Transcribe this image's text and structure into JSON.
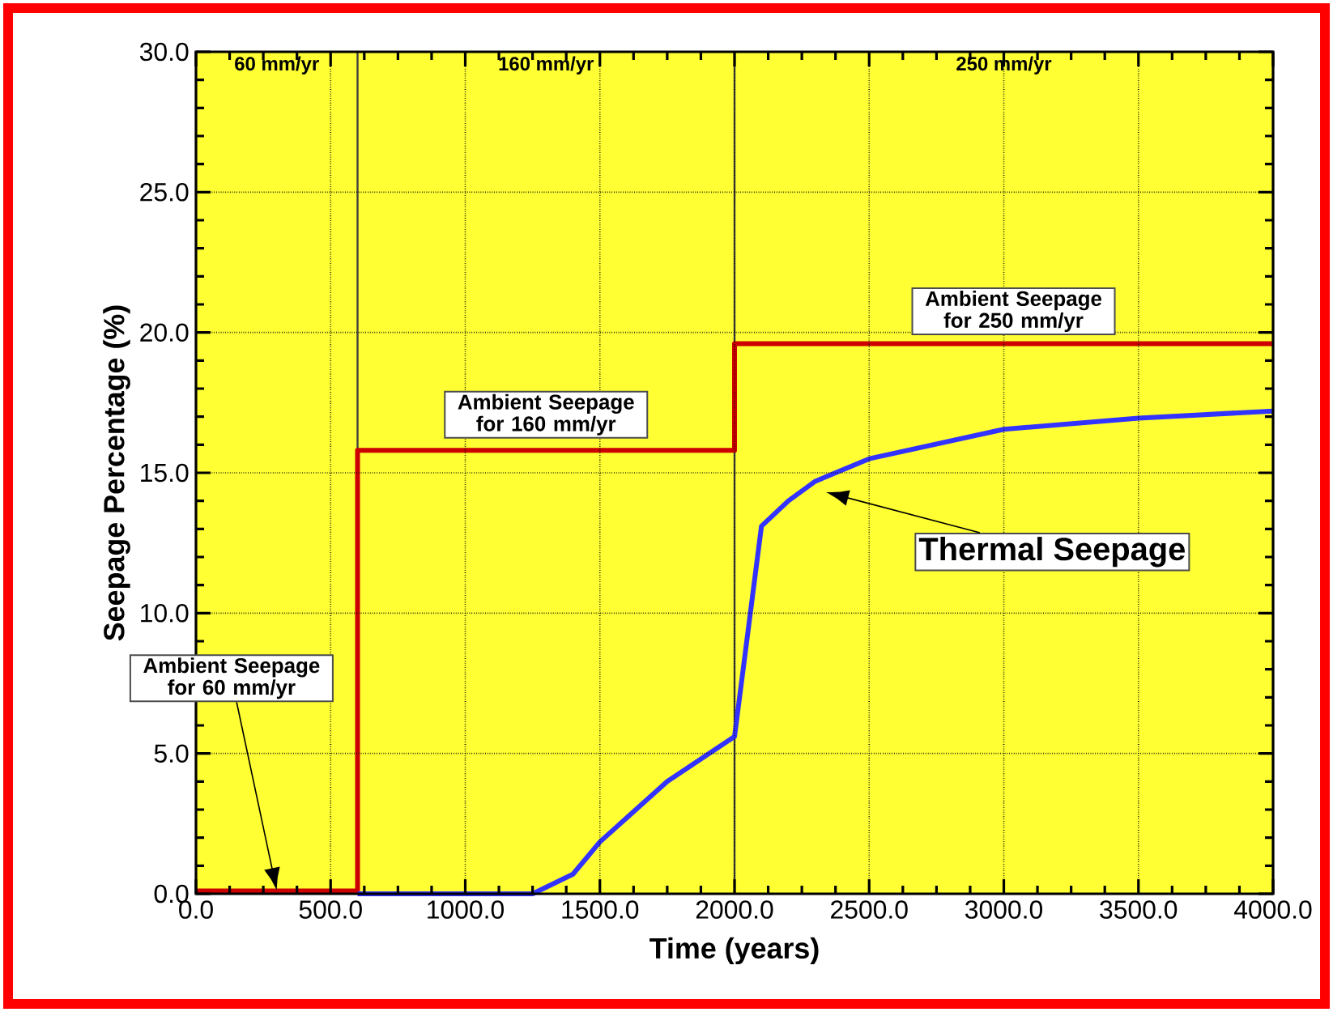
{
  "chart_data": {
    "type": "line",
    "xlabel": "Time (years)",
    "ylabel": "Seepage Percentage (%)",
    "xlim": [
      0,
      4000
    ],
    "ylim": [
      0,
      30
    ],
    "xticks": [
      {
        "value": 0,
        "label": "0.0"
      },
      {
        "value": 500,
        "label": "500.0"
      },
      {
        "value": 1000,
        "label": "1000.0"
      },
      {
        "value": 1500,
        "label": "1500.0"
      },
      {
        "value": 2000,
        "label": "2000.0"
      },
      {
        "value": 2500,
        "label": "2500.0"
      },
      {
        "value": 3000,
        "label": "3000.0"
      },
      {
        "value": 3500,
        "label": "3500.0"
      },
      {
        "value": 4000,
        "label": "4000.0"
      }
    ],
    "yticks": [
      {
        "value": 0,
        "label": "0.0"
      },
      {
        "value": 5,
        "label": "5.0"
      },
      {
        "value": 10,
        "label": "10.0"
      },
      {
        "value": 15,
        "label": "15.0"
      },
      {
        "value": 20,
        "label": "20.0"
      },
      {
        "value": 25,
        "label": "25.0"
      },
      {
        "value": 30,
        "label": "30.0"
      }
    ],
    "grid": true,
    "series": [
      {
        "color": "#cc0000",
        "x": [
          0,
          600,
          600,
          2000,
          2000,
          4000
        ],
        "values": [
          0.1,
          0.1,
          15.8,
          15.8,
          19.6,
          19.6
        ]
      },
      {
        "color": "#3333ff",
        "x": [
          600,
          1250,
          1400,
          1500,
          1750,
          2000,
          2100,
          2200,
          2300,
          2400,
          2500,
          3000,
          3500,
          4000
        ],
        "values": [
          0,
          0,
          0.7,
          1.85,
          4.0,
          5.6,
          13.1,
          14.0,
          14.7,
          15.1,
          15.5,
          16.55,
          16.95,
          17.2
        ]
      }
    ],
    "bands": [
      {
        "axis": "x",
        "from": 0,
        "to": 600,
        "label": "60 mm/yr",
        "color": "#ffff33"
      },
      {
        "axis": "x",
        "from": 600,
        "to": 2000,
        "label": "160 mm/yr",
        "color": "#ffff33"
      },
      {
        "axis": "x",
        "from": 2000,
        "to": 4000,
        "label": "250 mm/yr",
        "color": "#ffff33"
      }
    ],
    "ref_lines": [
      {
        "axis": "x",
        "value": 600,
        "color": "#404040"
      },
      {
        "axis": "x",
        "value": 2000,
        "color": "#404040"
      }
    ],
    "annotations": [
      "Ambient Seepage for 60 mm/yr",
      {
        "text": "Ambient Seepage for 160 mm/yr",
        "x": 1300,
        "y": 15.8
      },
      {
        "text": "Ambient Seepage for 250 mm/yr",
        "x": 3000,
        "y": 19.6
      },
      "Thermal Seepage"
    ]
  }
}
